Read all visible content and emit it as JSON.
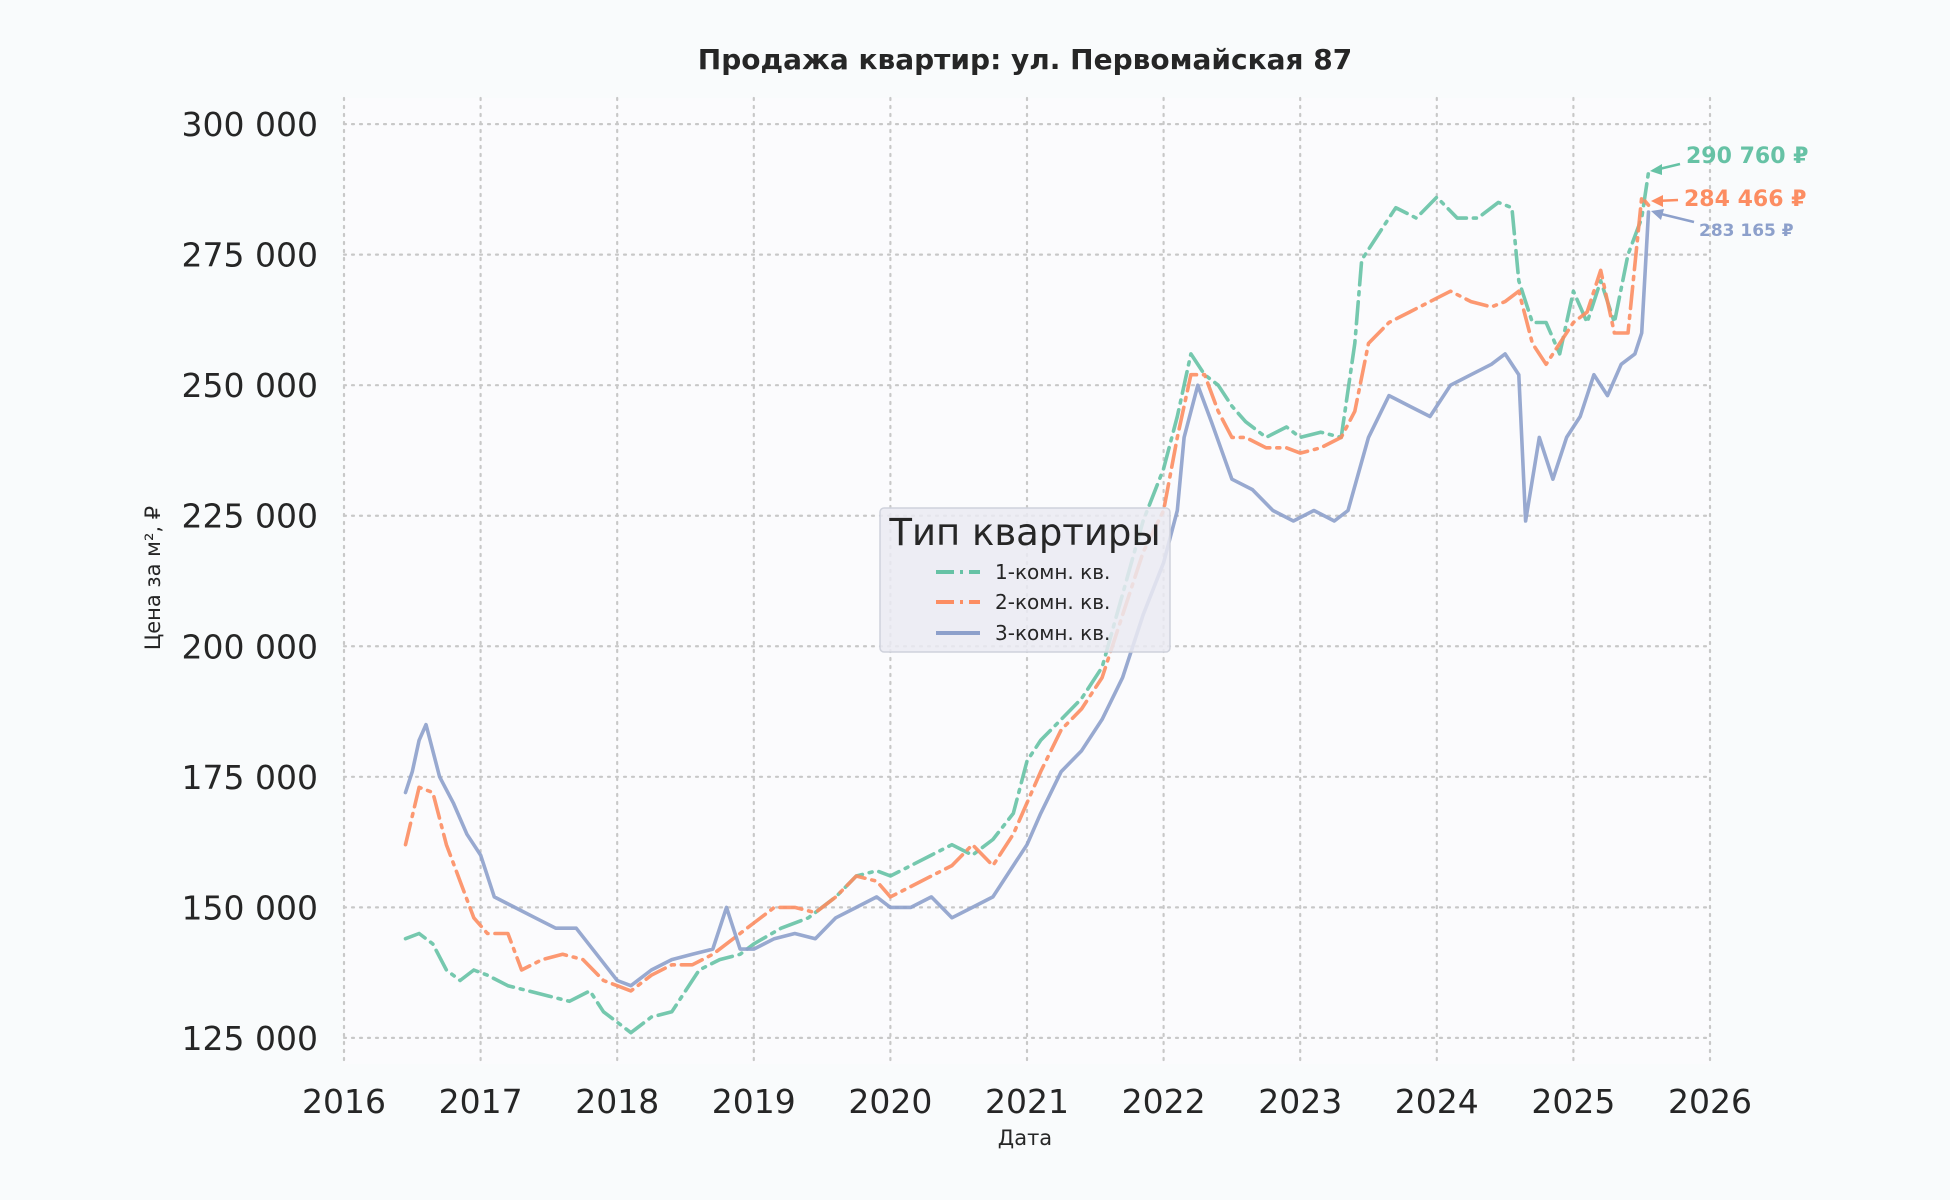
{
  "chart_data": {
    "type": "line",
    "title": "Продажа квартир: ул. Первомайская 87",
    "xlabel": "Дата",
    "ylabel": "Цена за м², ₽",
    "xlim": [
      2016,
      2026
    ],
    "ylim": [
      120000,
      305000
    ],
    "x_ticks": [
      2016,
      2017,
      2018,
      2019,
      2020,
      2021,
      2022,
      2023,
      2024,
      2025,
      2026
    ],
    "x_tick_labels": [
      "2016",
      "2017",
      "2018",
      "2019",
      "2020",
      "2021",
      "2022",
      "2023",
      "2024",
      "2025",
      "2026"
    ],
    "y_ticks": [
      125000,
      150000,
      175000,
      200000,
      225000,
      250000,
      275000,
      300000
    ],
    "y_tick_labels": [
      "125 000",
      "150 000",
      "175 000",
      "200 000",
      "225 000",
      "250 000",
      "275 000",
      "300 000"
    ],
    "grid": true,
    "legend": {
      "title": "Тип квартиры",
      "placement": "center"
    },
    "series": [
      {
        "name": "1-комн. кв.",
        "color": "#66c2a5",
        "dash": "dashdot",
        "x": [
          2016.45,
          2016.55,
          2016.65,
          2016.75,
          2016.85,
          2016.95,
          2017.05,
          2017.2,
          2017.35,
          2017.5,
          2017.65,
          2017.8,
          2017.9,
          2018.0,
          2018.1,
          2018.25,
          2018.4,
          2018.5,
          2018.6,
          2018.75,
          2018.9,
          2019.0,
          2019.2,
          2019.4,
          2019.6,
          2019.75,
          2019.9,
          2020.0,
          2020.15,
          2020.3,
          2020.45,
          2020.6,
          2020.75,
          2020.9,
          2021.0,
          2021.1,
          2021.25,
          2021.4,
          2021.55,
          2021.7,
          2021.85,
          2022.0,
          2022.1,
          2022.2,
          2022.3,
          2022.4,
          2022.5,
          2022.6,
          2022.75,
          2022.9,
          2023.0,
          2023.15,
          2023.3,
          2023.4,
          2023.45,
          2023.55,
          2023.7,
          2023.85,
          2024.0,
          2024.15,
          2024.3,
          2024.45,
          2024.55,
          2024.6,
          2024.7,
          2024.8,
          2024.9,
          2025.0,
          2025.1,
          2025.2,
          2025.3,
          2025.4,
          2025.5,
          2025.55
        ],
        "y": [
          144000,
          145000,
          143000,
          138000,
          136000,
          138000,
          137000,
          135000,
          134000,
          133000,
          132000,
          134000,
          130000,
          128000,
          126000,
          129000,
          130000,
          134000,
          138000,
          140000,
          141000,
          143000,
          146000,
          148000,
          152000,
          156000,
          157000,
          156000,
          158000,
          160000,
          162000,
          160000,
          163000,
          168000,
          178000,
          182000,
          186000,
          190000,
          196000,
          210000,
          224000,
          234000,
          244000,
          256000,
          252000,
          250000,
          246000,
          243000,
          240000,
          242000,
          240000,
          241000,
          240000,
          258000,
          274000,
          278000,
          284000,
          282000,
          286000,
          282000,
          282000,
          285000,
          284000,
          270000,
          262000,
          262000,
          256000,
          268000,
          262000,
          270000,
          262000,
          275000,
          282000,
          290760
        ]
      },
      {
        "name": "2-комн. кв.",
        "color": "#fc8d62",
        "dash": "dashdot",
        "x": [
          2016.45,
          2016.55,
          2016.65,
          2016.75,
          2016.85,
          2016.95,
          2017.05,
          2017.2,
          2017.3,
          2017.45,
          2017.6,
          2017.75,
          2017.9,
          2018.0,
          2018.1,
          2018.25,
          2018.4,
          2018.55,
          2018.7,
          2018.85,
          2019.0,
          2019.15,
          2019.3,
          2019.45,
          2019.6,
          2019.75,
          2019.9,
          2020.0,
          2020.15,
          2020.3,
          2020.45,
          2020.6,
          2020.75,
          2020.9,
          2021.0,
          2021.1,
          2021.25,
          2021.4,
          2021.55,
          2021.7,
          2021.85,
          2022.0,
          2022.1,
          2022.2,
          2022.3,
          2022.4,
          2022.5,
          2022.6,
          2022.75,
          2022.9,
          2023.0,
          2023.15,
          2023.3,
          2023.4,
          2023.5,
          2023.65,
          2023.8,
          2023.95,
          2024.1,
          2024.25,
          2024.4,
          2024.5,
          2024.6,
          2024.7,
          2024.8,
          2024.9,
          2025.0,
          2025.1,
          2025.2,
          2025.3,
          2025.4,
          2025.5,
          2025.55
        ],
        "y": [
          162000,
          173000,
          172000,
          162000,
          155000,
          148000,
          145000,
          145000,
          138000,
          140000,
          141000,
          140000,
          136000,
          135000,
          134000,
          137000,
          139000,
          139000,
          141000,
          144000,
          147000,
          150000,
          150000,
          149000,
          152000,
          156000,
          155000,
          152000,
          154000,
          156000,
          158000,
          162000,
          158000,
          164000,
          170000,
          176000,
          184000,
          188000,
          194000,
          206000,
          218000,
          226000,
          240000,
          252000,
          252000,
          245000,
          240000,
          240000,
          238000,
          238000,
          237000,
          238000,
          240000,
          245000,
          258000,
          262000,
          264000,
          266000,
          268000,
          266000,
          265000,
          266000,
          268000,
          258000,
          254000,
          258000,
          262000,
          264000,
          272000,
          260000,
          260000,
          286000,
          284466
        ]
      },
      {
        "name": "3-комн. кв.",
        "color": "#8da0cb",
        "dash": "solid",
        "x": [
          2016.45,
          2016.5,
          2016.55,
          2016.6,
          2016.7,
          2016.8,
          2016.9,
          2017.0,
          2017.1,
          2017.25,
          2017.4,
          2017.55,
          2017.7,
          2017.85,
          2018.0,
          2018.1,
          2018.25,
          2018.4,
          2018.55,
          2018.7,
          2018.8,
          2018.9,
          2019.0,
          2019.15,
          2019.3,
          2019.45,
          2019.6,
          2019.75,
          2019.9,
          2020.0,
          2020.15,
          2020.3,
          2020.45,
          2020.6,
          2020.75,
          2020.9,
          2021.0,
          2021.1,
          2021.25,
          2021.4,
          2021.55,
          2021.7,
          2021.85,
          2022.0,
          2022.1,
          2022.15,
          2022.25,
          2022.35,
          2022.5,
          2022.65,
          2022.8,
          2022.95,
          2023.1,
          2023.25,
          2023.35,
          2023.5,
          2023.65,
          2023.8,
          2023.95,
          2024.1,
          2024.25,
          2024.4,
          2024.5,
          2024.6,
          2024.65,
          2024.75,
          2024.85,
          2024.95,
          2025.05,
          2025.15,
          2025.25,
          2025.35,
          2025.45,
          2025.5,
          2025.55
        ],
        "y": [
          172000,
          176000,
          182000,
          185000,
          175000,
          170000,
          164000,
          160000,
          152000,
          150000,
          148000,
          146000,
          146000,
          141000,
          136000,
          135000,
          138000,
          140000,
          141000,
          142000,
          150000,
          142000,
          142000,
          144000,
          145000,
          144000,
          148000,
          150000,
          152000,
          150000,
          150000,
          152000,
          148000,
          150000,
          152000,
          158000,
          162000,
          168000,
          176000,
          180000,
          186000,
          194000,
          206000,
          216000,
          226000,
          240000,
          250000,
          243000,
          232000,
          230000,
          226000,
          224000,
          226000,
          224000,
          226000,
          240000,
          248000,
          246000,
          244000,
          250000,
          252000,
          254000,
          256000,
          252000,
          224000,
          240000,
          232000,
          240000,
          244000,
          252000,
          248000,
          254000,
          256000,
          260000,
          283165
        ]
      }
    ],
    "annotations": [
      {
        "text": "290 760 ₽",
        "series": "1-комн. кв.",
        "x": 2025.55,
        "y": 290760
      },
      {
        "text": "284 466 ₽",
        "series": "2-комн. кв.",
        "x": 2025.55,
        "y": 284466
      },
      {
        "text": "283 165 ₽",
        "series": "3-комн. кв.",
        "x": 2025.55,
        "y": 283165
      }
    ]
  }
}
